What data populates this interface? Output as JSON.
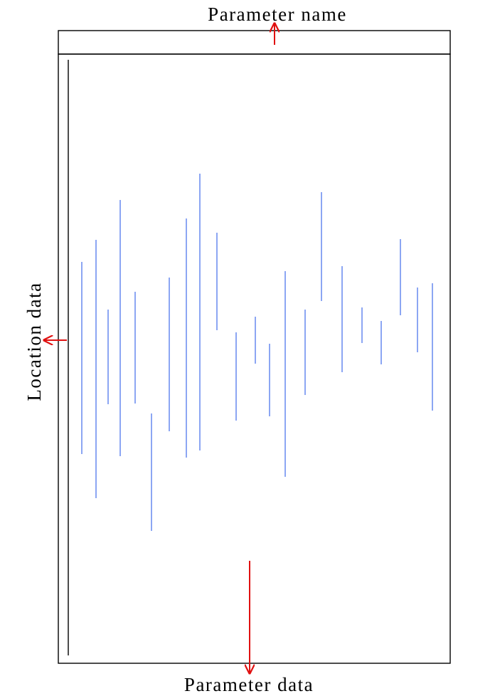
{
  "labels": {
    "parameter_name": "Parameter name",
    "location_data": "Location data",
    "parameter_data": "Parameter data"
  },
  "colors": {
    "frame": "#000000",
    "range_line": "#6f8ff0",
    "arrow": "#e01010"
  }
}
